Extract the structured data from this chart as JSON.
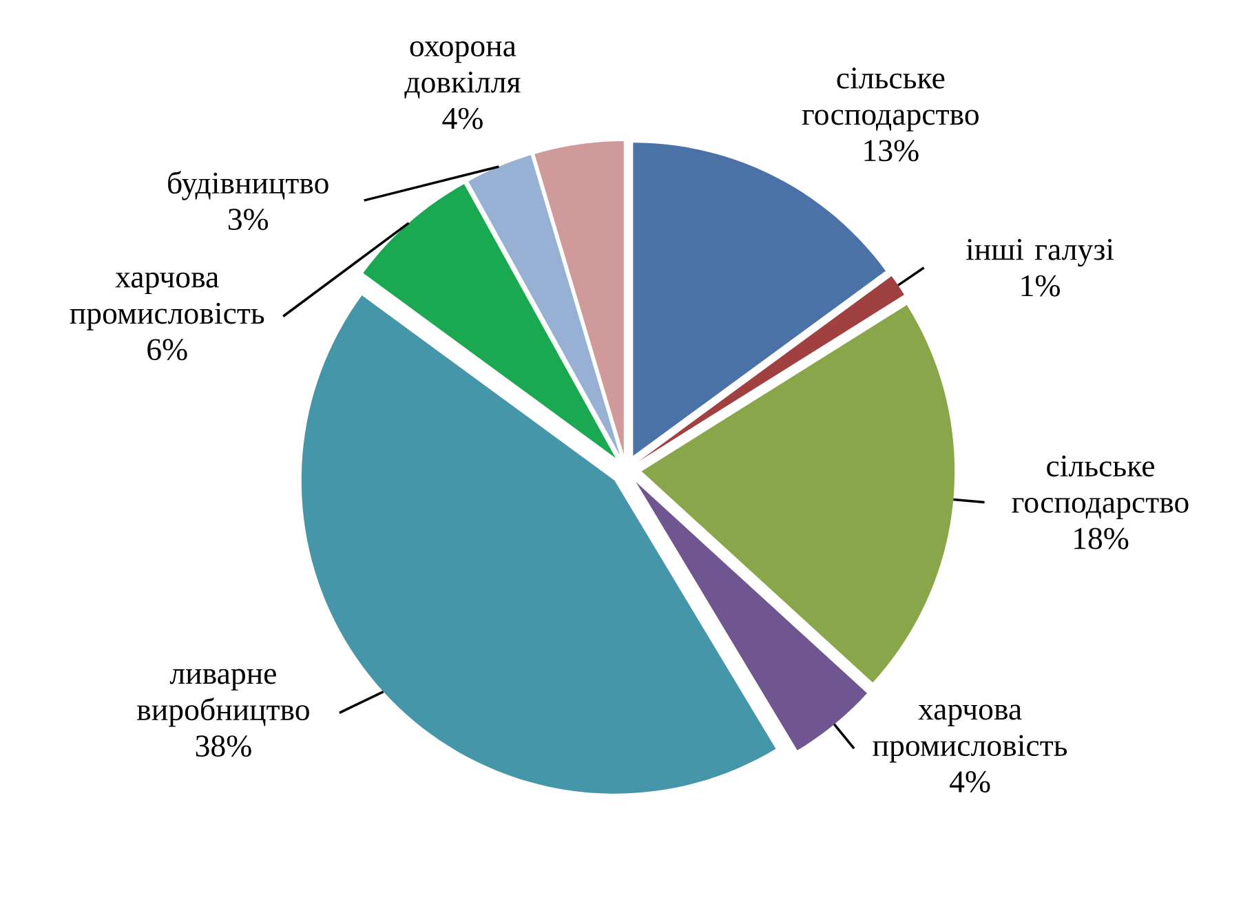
{
  "chart_data": {
    "type": "pie",
    "categories": [
      "сільське господарство",
      "інші галузі",
      "сільське господарство",
      "харчова промисловість",
      "ливарне виробництво",
      "харчова промисловість",
      "будівництво",
      "охорона довкілля"
    ],
    "values": [
      13,
      1,
      18,
      4,
      38,
      6,
      3,
      4
    ],
    "value_labels": [
      "13%",
      "1%",
      "18%",
      "4%",
      "38%",
      "6%",
      "3%",
      "4%"
    ],
    "colors": [
      "#4a72a6",
      "#a04040",
      "#8aa64a",
      "#6f5690",
      "#4496a8",
      "#1aa850",
      "#98b0d4",
      "#d09a9a"
    ]
  }
}
